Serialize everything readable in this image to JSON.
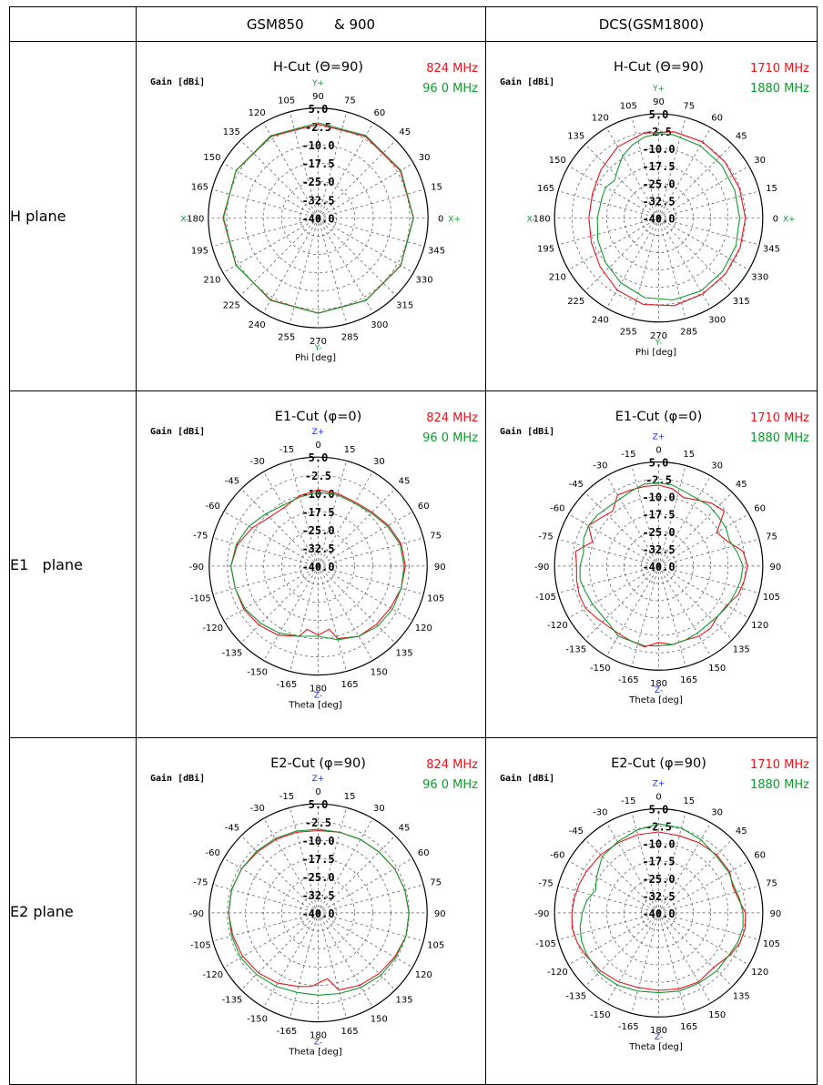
{
  "headers": {
    "corner": "",
    "col1": "GSM850       & 900",
    "col2": "DCS(GSM1800)"
  },
  "rows": [
    {
      "label": "H plane"
    },
    {
      "label": "E1   plane"
    },
    {
      "label": "E2 plane"
    }
  ],
  "colors": {
    "red": "#e8141c",
    "green": "#109a2e",
    "blue": "#1a2adc",
    "grid": "#555555"
  },
  "chart_data": [
    {
      "type": "polar",
      "id": "h_gsm",
      "title": "H-Cut (Θ=90)",
      "ylabel": "Gain [dBi]",
      "xlabel": "Phi [deg]",
      "r_ticks": [
        "5.0",
        "-2.5",
        "-10.0",
        "-17.5",
        "-25.0",
        "-32.5",
        "-40.0"
      ],
      "rlim": [
        -40,
        5
      ],
      "angle_labels": [
        "0",
        "15",
        "30",
        "45",
        "60",
        "75",
        "90",
        "105",
        "120",
        "135",
        "150",
        "165",
        "180",
        "195",
        "210",
        "225",
        "240",
        "255",
        "270",
        "285",
        "300",
        "315",
        "330",
        "345"
      ],
      "axis_markers": {
        "top": "Y+",
        "bottom": "Y-",
        "left": "X-",
        "right": "X+"
      },
      "marker_color": "green",
      "angle_mode": "phi",
      "series": [
        {
          "name": "824  MHz",
          "color": "red",
          "angles": [
            0,
            30,
            60,
            90,
            120,
            150,
            180,
            210,
            240,
            270,
            300,
            330
          ],
          "values": [
            -1.0,
            -1.2,
            -1.4,
            -1.6,
            -1.4,
            -1.2,
            -1.0,
            -1.1,
            -1.2,
            -1.0,
            -1.0,
            -1.0
          ]
        },
        {
          "name": "96 0 MHz",
          "color": "green",
          "angles": [
            0,
            30,
            60,
            90,
            120,
            150,
            180,
            210,
            240,
            270,
            300,
            330
          ],
          "values": [
            -0.9,
            -0.9,
            -1.0,
            -1.0,
            -1.1,
            -1.1,
            -1.2,
            -1.2,
            -1.0,
            -0.9,
            -0.9,
            -0.9
          ]
        }
      ]
    },
    {
      "type": "polar",
      "id": "h_dcs",
      "title": "H-Cut (Θ=90)",
      "ylabel": "Gain [dBi]",
      "xlabel": "Phi [deg]",
      "r_ticks": [
        "5.0",
        "-2.5",
        "-10.0",
        "-17.5",
        "-25.0",
        "-32.5",
        "-40.0"
      ],
      "rlim": [
        -40,
        5
      ],
      "angle_labels": [
        "0",
        "15",
        "30",
        "45",
        "60",
        "75",
        "90",
        "105",
        "120",
        "135",
        "150",
        "165",
        "180",
        "195",
        "210",
        "225",
        "240",
        "255",
        "270",
        "285",
        "300",
        "315",
        "330",
        "345"
      ],
      "axis_markers": {
        "top": "Y+",
        "bottom": "Y-",
        "left": "X-",
        "right": "X+"
      },
      "marker_color": "green",
      "angle_mode": "phi",
      "series": [
        {
          "name": "1710  MHz",
          "color": "red",
          "angles": [
            0,
            20,
            40,
            60,
            80,
            100,
            120,
            140,
            160,
            180,
            200,
            220,
            240,
            260,
            280,
            300,
            320,
            340
          ],
          "values": [
            -2.5,
            -2.8,
            -2.5,
            -2.0,
            -2.2,
            -2.8,
            -4.5,
            -7.5,
            -9.5,
            -9.8,
            -9.0,
            -7.0,
            -4.0,
            -2.0,
            -1.5,
            -2.0,
            -2.3,
            -2.5
          ]
        },
        {
          "name": "1880  MHz",
          "color": "green",
          "angles": [
            0,
            20,
            40,
            60,
            80,
            90,
            100,
            110,
            120,
            130,
            140,
            150,
            160,
            180,
            200,
            220,
            240,
            260,
            280,
            300,
            320,
            340
          ],
          "values": [
            -5.0,
            -5.0,
            -4.5,
            -4.0,
            -3.5,
            -3.5,
            -4.5,
            -6.5,
            -9.0,
            -12.5,
            -15.0,
            -13.5,
            -14.0,
            -13.5,
            -12.0,
            -10.0,
            -7.5,
            -5.0,
            -4.0,
            -3.5,
            -4.0,
            -4.5
          ]
        }
      ]
    },
    {
      "type": "polar",
      "id": "e1_gsm",
      "title": "E1-Cut (φ=0)",
      "ylabel": "Gain [dBi]",
      "xlabel": "Theta [deg]",
      "r_ticks": [
        "5.0",
        "-2.5",
        "-10.0",
        "-17.5",
        "-25.0",
        "-32.5",
        "-40.0"
      ],
      "rlim": [
        -40,
        5
      ],
      "angle_labels": [
        "0",
        "15",
        "30",
        "45",
        "60",
        "75",
        "90",
        "105",
        "120",
        "135",
        "150",
        "165",
        "180",
        "-165",
        "-150",
        "-135",
        "-120",
        "-105",
        "-90",
        "-75",
        "-60",
        "-45",
        "-30",
        "-15"
      ],
      "axis_markers": {
        "top": "Z+",
        "bottom": "Z-"
      },
      "marker_color": "blue",
      "angle_mode": "theta",
      "series": [
        {
          "name": "824  MHz",
          "color": "red",
          "angles": [
            0,
            15,
            30,
            45,
            60,
            75,
            90,
            105,
            120,
            135,
            150,
            165,
            170,
            180,
            -170,
            -165,
            -150,
            -135,
            -120,
            -105,
            -90,
            -75,
            -60,
            -45,
            -30,
            -15
          ],
          "values": [
            -8.5,
            -9.0,
            -9.5,
            -8.5,
            -6.5,
            -4.5,
            -4.0,
            -4.5,
            -5.5,
            -6.0,
            -6.5,
            -9.0,
            -13.5,
            -11.5,
            -13.5,
            -10.0,
            -7.0,
            -5.5,
            -4.5,
            -4.5,
            -4.0,
            -5.5,
            -8.5,
            -11.5,
            -12.0,
            -10.0
          ]
        },
        {
          "name": "96 0 MHz",
          "color": "green",
          "angles": [
            0,
            15,
            30,
            45,
            60,
            75,
            90,
            105,
            120,
            135,
            150,
            165,
            180,
            -165,
            -150,
            -135,
            -120,
            -105,
            -90,
            -75,
            -60,
            -45,
            -30,
            -15
          ],
          "values": [
            -9.5,
            -9.5,
            -10.0,
            -9.0,
            -7.0,
            -5.0,
            -4.5,
            -4.5,
            -4.5,
            -5.0,
            -6.5,
            -8.5,
            -11.0,
            -10.0,
            -8.0,
            -6.5,
            -5.0,
            -4.5,
            -4.0,
            -5.0,
            -7.0,
            -9.5,
            -11.0,
            -10.5
          ]
        }
      ]
    },
    {
      "type": "polar",
      "id": "e1_dcs",
      "title": "E1-Cut (φ=0)",
      "ylabel": "Gain [dBi]",
      "xlabel": "Theta [deg]",
      "r_ticks": [
        "5.0",
        "-2.5",
        "-10.0",
        "-17.5",
        "-25.0",
        "-32.5",
        "-40.0"
      ],
      "rlim": [
        -40,
        5
      ],
      "angle_labels": [
        "0",
        "15",
        "30",
        "45",
        "60",
        "75",
        "90",
        "105",
        "120",
        "135",
        "150",
        "165",
        "180",
        "-165",
        "-150",
        "-135",
        "-120",
        "-105",
        "-90",
        "-75",
        "-60",
        "-45",
        "-30",
        "-15"
      ],
      "axis_markers": {
        "top": "Z+",
        "bottom": "Z-"
      },
      "marker_color": "blue",
      "angle_mode": "theta",
      "series": [
        {
          "name": "1710  MHz",
          "color": "red",
          "angles": [
            0,
            10,
            20,
            30,
            40,
            50,
            60,
            70,
            80,
            90,
            100,
            110,
            120,
            130,
            140,
            150,
            160,
            170,
            180,
            -170,
            -160,
            -150,
            -140,
            -130,
            -120,
            -110,
            -100,
            -90,
            -80,
            -70,
            -60,
            -50,
            -40,
            -30,
            -20,
            -10
          ],
          "values": [
            -5.0,
            -6.0,
            -8.5,
            -7.0,
            -4.5,
            -3.0,
            -11.0,
            -8.5,
            -3.0,
            -1.5,
            -2.5,
            -3.5,
            -6.0,
            -6.5,
            -5.0,
            -5.0,
            -6.0,
            -5.5,
            -7.0,
            -4.5,
            -5.5,
            -6.0,
            -6.0,
            -5.0,
            -3.5,
            -3.5,
            -4.0,
            -4.5,
            -3.5,
            -9.5,
            -5.0,
            -7.5,
            -9.0,
            -4.5,
            -5.0,
            -5.0
          ]
        },
        {
          "name": "1880  MHz",
          "color": "green",
          "angles": [
            0,
            10,
            20,
            30,
            40,
            50,
            60,
            70,
            80,
            90,
            100,
            110,
            120,
            130,
            140,
            150,
            160,
            170,
            180,
            -170,
            -160,
            -150,
            -140,
            -130,
            -120,
            -110,
            -100,
            -90,
            -80,
            -70,
            -60,
            -50,
            -40,
            -30,
            -20,
            -10
          ],
          "values": [
            -4.0,
            -4.5,
            -6.0,
            -6.5,
            -6.0,
            -6.5,
            -6.5,
            -7.5,
            -5.5,
            -3.5,
            -4.0,
            -5.0,
            -5.5,
            -6.5,
            -7.0,
            -6.5,
            -6.0,
            -5.5,
            -5.5,
            -5.0,
            -5.5,
            -5.0,
            -7.0,
            -7.5,
            -7.0,
            -6.5,
            -5.5,
            -6.0,
            -7.0,
            -5.5,
            -5.0,
            -5.5,
            -6.5,
            -6.5,
            -5.5,
            -4.0
          ]
        }
      ]
    },
    {
      "type": "polar",
      "id": "e2_gsm",
      "title": "E2-Cut (φ=90)",
      "ylabel": "Gain [dBi]",
      "xlabel": "Theta [deg]",
      "r_ticks": [
        "5.0",
        "-2.5",
        "-10.0",
        "-17.5",
        "-25.0",
        "-32.5",
        "-40.0"
      ],
      "rlim": [
        -40,
        5
      ],
      "angle_labels": [
        "0",
        "15",
        "30",
        "45",
        "60",
        "75",
        "90",
        "105",
        "120",
        "135",
        "150",
        "165",
        "180",
        "-165",
        "-150",
        "-135",
        "-120",
        "-105",
        "-90",
        "-75",
        "-60",
        "-45",
        "-30",
        "-15"
      ],
      "axis_markers": {
        "top": "Z+",
        "bottom": "Z-"
      },
      "marker_color": "blue",
      "angle_mode": "theta",
      "series": [
        {
          "name": "824  MHz",
          "color": "red",
          "angles": [
            0,
            15,
            30,
            45,
            60,
            75,
            90,
            105,
            120,
            135,
            150,
            165,
            172,
            178,
            -175,
            -165,
            -150,
            -135,
            -120,
            -105,
            -90,
            -75,
            -60,
            -45,
            -30,
            -15
          ],
          "values": [
            -6.0,
            -5.5,
            -5.0,
            -4.5,
            -3.5,
            -3.0,
            -2.5,
            -2.5,
            -3.5,
            -4.5,
            -5.5,
            -7.0,
            -12.5,
            -11.5,
            -9.5,
            -8.5,
            -6.5,
            -5.0,
            -4.0,
            -3.5,
            -3.0,
            -3.0,
            -3.5,
            -4.5,
            -5.0,
            -5.5
          ]
        },
        {
          "name": "96 0 MHz",
          "color": "green",
          "angles": [
            0,
            15,
            30,
            45,
            60,
            75,
            90,
            105,
            120,
            135,
            150,
            165,
            180,
            -165,
            -150,
            -135,
            -120,
            -105,
            -90,
            -75,
            -60,
            -45,
            -30,
            -15
          ],
          "values": [
            -5.5,
            -5.5,
            -5.0,
            -4.5,
            -3.5,
            -3.0,
            -2.5,
            -2.5,
            -3.0,
            -3.5,
            -4.5,
            -5.5,
            -6.0,
            -6.0,
            -5.0,
            -4.0,
            -3.0,
            -3.0,
            -3.0,
            -3.0,
            -3.5,
            -4.0,
            -4.5,
            -5.0
          ]
        }
      ]
    },
    {
      "type": "polar",
      "id": "e2_dcs",
      "title": "E2-Cut (φ=90)",
      "ylabel": "Gain [dBi]",
      "xlabel": "Theta [deg]",
      "r_ticks": [
        "5.0",
        "-2.5",
        "-10.0",
        "-17.5",
        "-25.0",
        "-32.5",
        "-40.0"
      ],
      "rlim": [
        -40,
        5
      ],
      "angle_labels": [
        "0",
        "15",
        "30",
        "45",
        "60",
        "75",
        "90",
        "105",
        "120",
        "135",
        "150",
        "165",
        "180",
        "-165",
        "-150",
        "-135",
        "-120",
        "-105",
        "-90",
        "-75",
        "-60",
        "-45",
        "-30",
        "-15"
      ],
      "axis_markers": {
        "top": "Z+",
        "bottom": "Z-"
      },
      "marker_color": "blue",
      "angle_mode": "theta",
      "series": [
        {
          "name": "1710  MHz",
          "color": "red",
          "angles": [
            0,
            15,
            30,
            45,
            60,
            70,
            80,
            90,
            100,
            110,
            120,
            135,
            150,
            165,
            180,
            -165,
            -150,
            -135,
            -120,
            -110,
            -100,
            -90,
            -80,
            -70,
            -60,
            -45,
            -30,
            -15
          ],
          "values": [
            -5.0,
            -5.5,
            -5.0,
            -4.5,
            -4.5,
            -6.0,
            -5.0,
            -2.5,
            -2.0,
            -2.5,
            -4.0,
            -6.5,
            -5.5,
            -6.0,
            -6.5,
            -6.5,
            -5.5,
            -4.5,
            -3.5,
            -2.5,
            -2.0,
            -2.5,
            -3.0,
            -3.5,
            -4.0,
            -4.5,
            -5.0,
            -5.0
          ]
        },
        {
          "name": "1880  MHz",
          "color": "green",
          "angles": [
            0,
            15,
            30,
            45,
            60,
            70,
            80,
            90,
            100,
            110,
            120,
            135,
            150,
            165,
            180,
            -165,
            -150,
            -135,
            -120,
            -110,
            -100,
            -90,
            -80,
            -70,
            -60,
            -45,
            -30,
            -15
          ],
          "values": [
            -1.5,
            -2.0,
            -3.5,
            -5.0,
            -5.0,
            -5.5,
            -4.5,
            -3.5,
            -3.0,
            -3.5,
            -4.5,
            -4.5,
            -5.0,
            -5.0,
            -5.5,
            -5.0,
            -4.0,
            -3.5,
            -4.0,
            -4.5,
            -5.5,
            -7.0,
            -8.5,
            -11.0,
            -9.0,
            -5.5,
            -4.5,
            -3.0
          ]
        }
      ]
    }
  ]
}
